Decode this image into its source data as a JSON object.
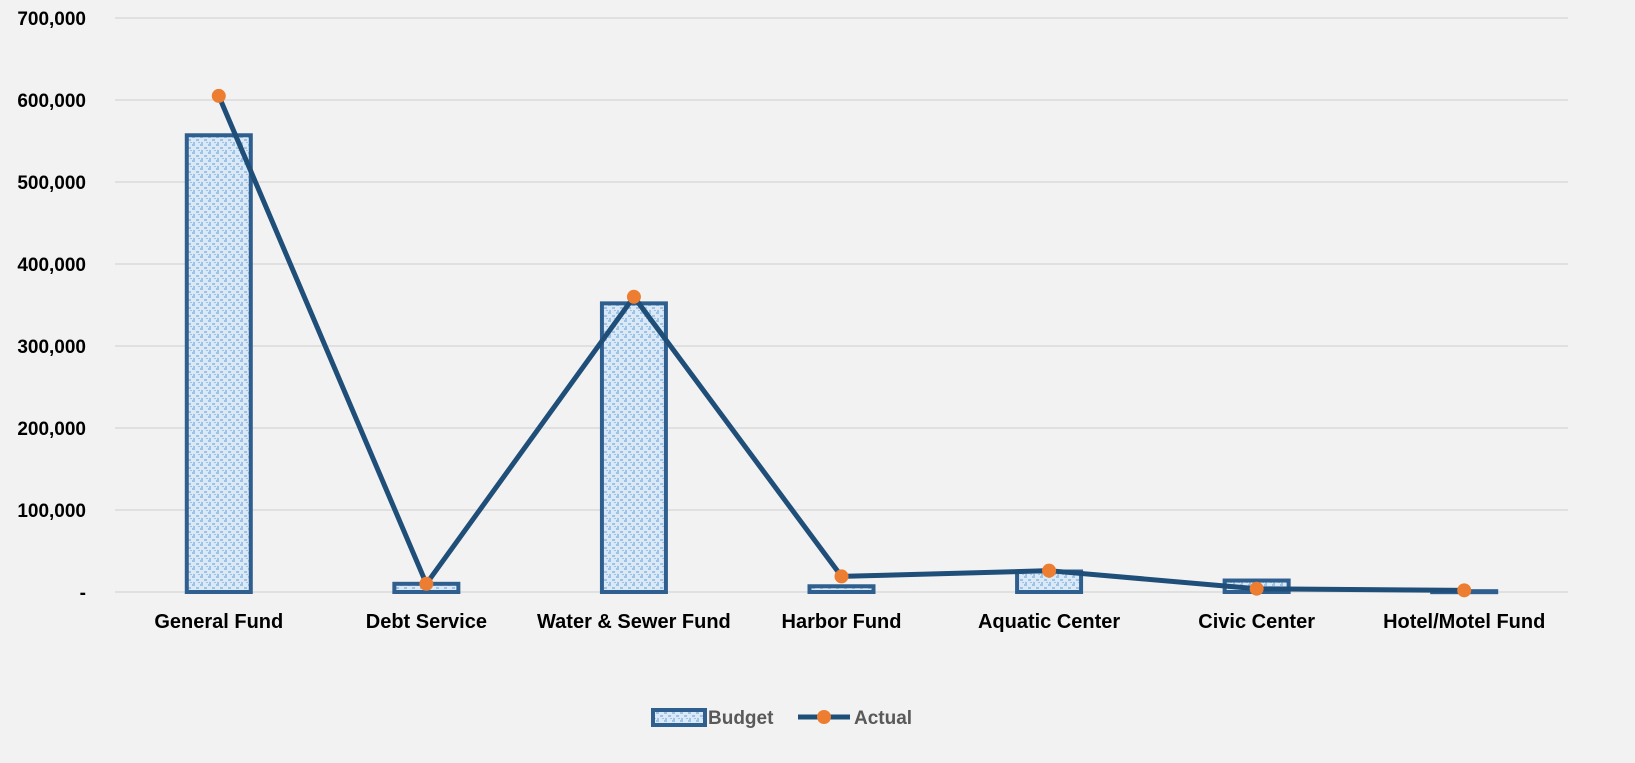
{
  "chart_data": {
    "type": "bar+line",
    "title": "",
    "xlabel": "",
    "ylabel": "",
    "categories": [
      "General Fund",
      "Debt Service",
      "Water & Sewer Fund",
      "Harbor Fund",
      "Aquatic Center",
      "Civic Center",
      "Hotel/Motel Fund"
    ],
    "y_tick_labels": [
      "-",
      "100,000",
      "200,000",
      "300,000",
      "400,000",
      "500,000",
      "600,000",
      "700,000"
    ],
    "ylim": [
      0,
      700000
    ],
    "y_ticks": [
      0,
      100000,
      200000,
      300000,
      400000,
      500000,
      600000,
      700000
    ],
    "grid": true,
    "legend_position": "bottom",
    "series": [
      {
        "name": "Budget",
        "type": "bar",
        "values": [
          557000,
          10000,
          352000,
          7000,
          25000,
          14000,
          1000
        ]
      },
      {
        "name": "Actual",
        "type": "line",
        "values": [
          605000,
          10000,
          360000,
          19000,
          26000,
          4000,
          2000
        ]
      }
    ],
    "colors": {
      "background": "#f2f2f2",
      "gridline": "#d9d9d9",
      "bar_border": "#2f5f8f",
      "bar_fill": "#dbe8f6",
      "bar_pattern": "#9dc3e6",
      "line": "#1f4e79",
      "marker": "#ed7d31"
    }
  }
}
